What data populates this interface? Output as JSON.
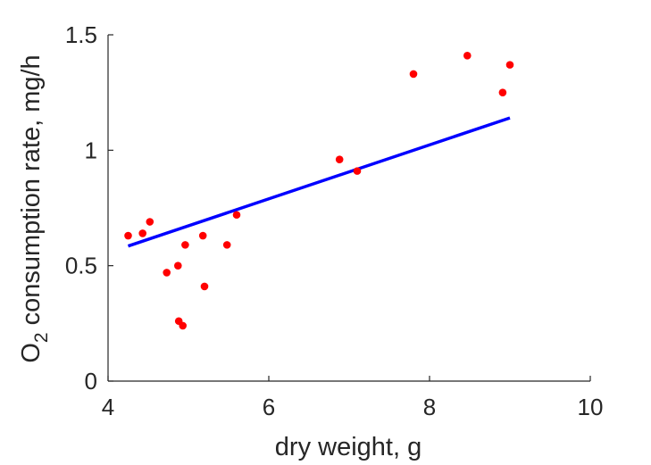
{
  "chart_data": {
    "type": "scatter",
    "title": "",
    "xlabel": "dry weight, g",
    "ylabel": {
      "prefix": "O",
      "subscript": "2",
      "text": " consumption rate, mg/h"
    },
    "xlim": [
      4,
      10
    ],
    "ylim": [
      0,
      1.5
    ],
    "x_ticks": [
      4,
      6,
      8,
      10
    ],
    "y_ticks": [
      0,
      0.5,
      1,
      1.5
    ],
    "x_tick_labels": [
      "4",
      "6",
      "8",
      "10"
    ],
    "y_tick_labels": [
      "0",
      "0.5",
      "1",
      "1.5"
    ],
    "grid": false,
    "series": [
      {
        "kind": "points",
        "color": "#ff0000",
        "points": [
          {
            "x": 4.25,
            "y": 0.63
          },
          {
            "x": 4.43,
            "y": 0.64
          },
          {
            "x": 4.52,
            "y": 0.69
          },
          {
            "x": 4.73,
            "y": 0.47
          },
          {
            "x": 4.87,
            "y": 0.5
          },
          {
            "x": 4.88,
            "y": 0.26
          },
          {
            "x": 4.93,
            "y": 0.24
          },
          {
            "x": 4.96,
            "y": 0.59
          },
          {
            "x": 5.18,
            "y": 0.63
          },
          {
            "x": 5.2,
            "y": 0.41
          },
          {
            "x": 5.48,
            "y": 0.59
          },
          {
            "x": 5.6,
            "y": 0.72
          },
          {
            "x": 6.88,
            "y": 0.96
          },
          {
            "x": 7.1,
            "y": 0.91
          },
          {
            "x": 7.8,
            "y": 1.33
          },
          {
            "x": 8.47,
            "y": 1.41
          },
          {
            "x": 8.91,
            "y": 1.25
          },
          {
            "x": 9.0,
            "y": 1.37
          }
        ]
      },
      {
        "kind": "fit-line",
        "color": "#0000ff",
        "points": [
          {
            "x": 4.25,
            "y": 0.585
          },
          {
            "x": 9.0,
            "y": 1.14
          }
        ]
      }
    ]
  }
}
